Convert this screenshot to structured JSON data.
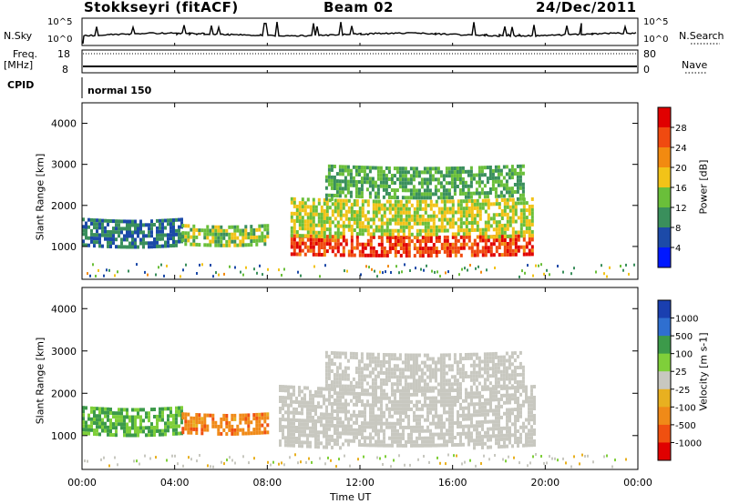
{
  "header": {
    "title": "Stokkseyri (fitACF)",
    "beam": "Beam 02",
    "date": "24/Dec/2011"
  },
  "top_panels": {
    "nsky_label": "N.Sky",
    "nsearch_label": "N.Search",
    "nsky_ticks": [
      "10^5",
      "10^0"
    ],
    "nsearch_ticks": [
      "10^5",
      "10^0"
    ],
    "freq_label": "Freq.",
    "freq_unit": "[MHz]",
    "freq_ticks": [
      "18",
      "8"
    ],
    "nave_label": "Nave",
    "nave_ticks": [
      "80",
      "0"
    ],
    "cpid_label": "CPID",
    "cpid_value": "normal 150"
  },
  "colors": {
    "power": [
      "#0018ff",
      "#1c4aa8",
      "#3a8f5c",
      "#6abf3a",
      "#f2c318",
      "#f28a10",
      "#f04a10",
      "#e00000"
    ],
    "velocity": [
      "#1a3fb0",
      "#2f6fd0",
      "#3c9a4a",
      "#7fcf3a",
      "#c8c8c0",
      "#e8b020",
      "#f08a18",
      "#f05010",
      "#e00000"
    ]
  },
  "chart_data": [
    {
      "type": "heatmap",
      "name": "power",
      "ylabel": "Slant Range [km]",
      "xlabel": "Time UT",
      "x_ticks": [
        "00:00",
        "04:00",
        "08:00",
        "12:00",
        "16:00",
        "20:00",
        "00:00"
      ],
      "y_ticks": [
        "1000",
        "2000",
        "3000",
        "4000"
      ],
      "ylim": [
        200,
        4500
      ],
      "colorbar": {
        "label": "Power [dB]",
        "ticks": [
          "4",
          "8",
          "12",
          "16",
          "20",
          "24",
          "28"
        ]
      },
      "echo_regions": [
        {
          "t_start": 0.0,
          "t_end": 4.3,
          "range_low": 1050,
          "range_high": 1700,
          "power": 8
        },
        {
          "t_start": 4.3,
          "t_end": 8.0,
          "range_low": 1050,
          "range_high": 1550,
          "power": 14
        },
        {
          "t_start": 9.0,
          "t_end": 19.5,
          "range_low": 800,
          "range_high": 1300,
          "power": 27
        },
        {
          "t_start": 9.0,
          "t_end": 19.5,
          "range_low": 1300,
          "range_high": 2200,
          "power": 16
        },
        {
          "t_start": 10.5,
          "t_end": 19.0,
          "range_low": 2200,
          "range_high": 3000,
          "power": 12
        }
      ]
    },
    {
      "type": "heatmap",
      "name": "velocity",
      "ylabel": "Slant Range [km]",
      "xlabel": "Time UT",
      "x_ticks": [
        "00:00",
        "04:00",
        "08:00",
        "12:00",
        "16:00",
        "20:00",
        "00:00"
      ],
      "y_ticks": [
        "1000",
        "2000",
        "3000",
        "4000"
      ],
      "ylim": [
        200,
        4500
      ],
      "colorbar": {
        "label": "Velocity [m s-1]",
        "ticks": [
          "1000",
          "500",
          "100",
          "25",
          "-25",
          "-100",
          "-500",
          "-1000"
        ]
      },
      "echo_regions": [
        {
          "t_start": 0.0,
          "t_end": 4.3,
          "range_low": 1050,
          "range_high": 1700,
          "velocity": 60
        },
        {
          "t_start": 4.3,
          "t_end": 8.0,
          "range_low": 1050,
          "range_high": 1550,
          "velocity": -200
        },
        {
          "t_start": 8.5,
          "t_end": 19.5,
          "range_low": 800,
          "range_high": 2200,
          "velocity": 0
        },
        {
          "t_start": 10.5,
          "t_end": 19.0,
          "range_low": 2200,
          "range_high": 3000,
          "velocity": 0
        }
      ]
    }
  ]
}
